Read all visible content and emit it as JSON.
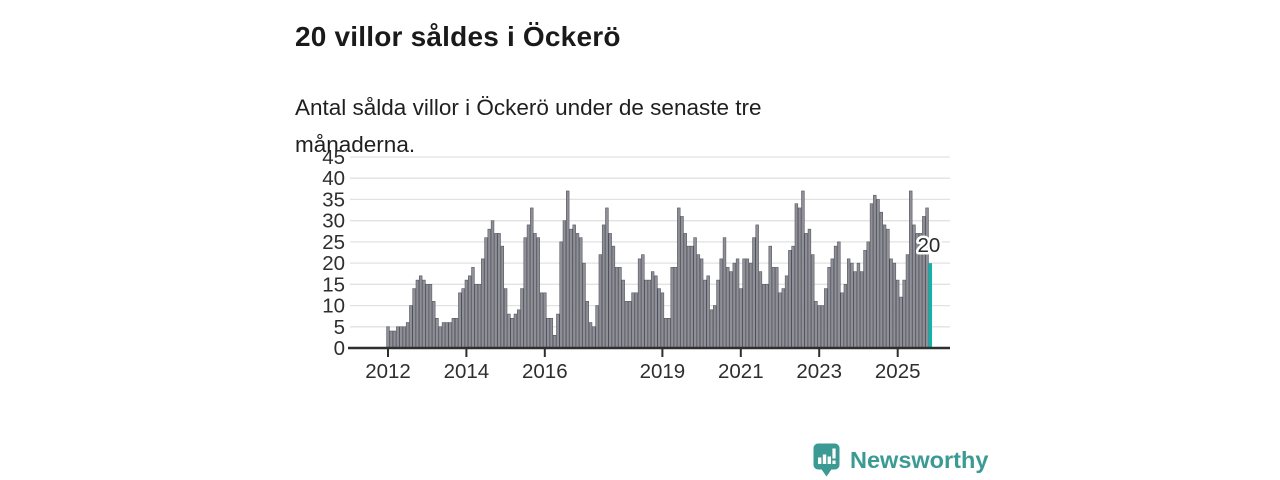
{
  "header": {
    "title": "20 villor såldes i Öckerö",
    "subtitle": "Antal sålda villor i Öckerö under de senaste tre månaderna."
  },
  "footer": {
    "brand": "Newsworthy"
  },
  "colors": {
    "accent_teal": "#10b3ab",
    "bar_gray": "#8f8f97",
    "bar_stroke": "#50505a",
    "grid": "#e2e2e2",
    "axis": "#2f2f2f",
    "tick_text": "#2e2e2e",
    "brand_teal": "#3b9a93",
    "title_text": "#1a1a1a"
  },
  "chart_data": {
    "type": "bar",
    "title": "20 villor såldes i Öckerö",
    "subtitle": "Antal sålda villor i Öckerö under de senaste tre månaderna.",
    "start_month": "2012-01",
    "end_month": "2025-11",
    "x_tick_years": [
      2012,
      2014,
      2016,
      2019,
      2021,
      2023,
      2025
    ],
    "y_ticks": [
      0,
      5,
      10,
      15,
      20,
      25,
      30,
      35,
      40,
      45
    ],
    "ylim": [
      0,
      45
    ],
    "grid": true,
    "highlight_last": true,
    "last_value_label": "20",
    "values": [
      5,
      4,
      4,
      5,
      5,
      5,
      6,
      10,
      14,
      16,
      17,
      16,
      15,
      15,
      11,
      7,
      5,
      6,
      6,
      6,
      7,
      7,
      13,
      14,
      16,
      17,
      19,
      15,
      15,
      21,
      26,
      28,
      30,
      27,
      27,
      24,
      14,
      8,
      7,
      8,
      9,
      14,
      26,
      29,
      33,
      27,
      26,
      13,
      13,
      7,
      7,
      3,
      8,
      25,
      30,
      37,
      28,
      29,
      27,
      26,
      20,
      11,
      6,
      5,
      10,
      22,
      29,
      33,
      27,
      24,
      19,
      19,
      16,
      11,
      11,
      13,
      13,
      21,
      22,
      16,
      16,
      18,
      17,
      14,
      13,
      7,
      7,
      19,
      19,
      33,
      31,
      27,
      24,
      24,
      26,
      22,
      21,
      16,
      17,
      9,
      10,
      16,
      21,
      26,
      19,
      18,
      20,
      21,
      14,
      21,
      21,
      20,
      26,
      29,
      18,
      15,
      15,
      24,
      19,
      19,
      13,
      14,
      17,
      23,
      24,
      34,
      33,
      37,
      27,
      28,
      22,
      11,
      10,
      10,
      14,
      19,
      21,
      24,
      25,
      13,
      15,
      21,
      20,
      18,
      20,
      18,
      23,
      25,
      34,
      36,
      35,
      32,
      29,
      28,
      21,
      20,
      16,
      12,
      16,
      22,
      37,
      29,
      27,
      27,
      31,
      33,
      20
    ]
  }
}
